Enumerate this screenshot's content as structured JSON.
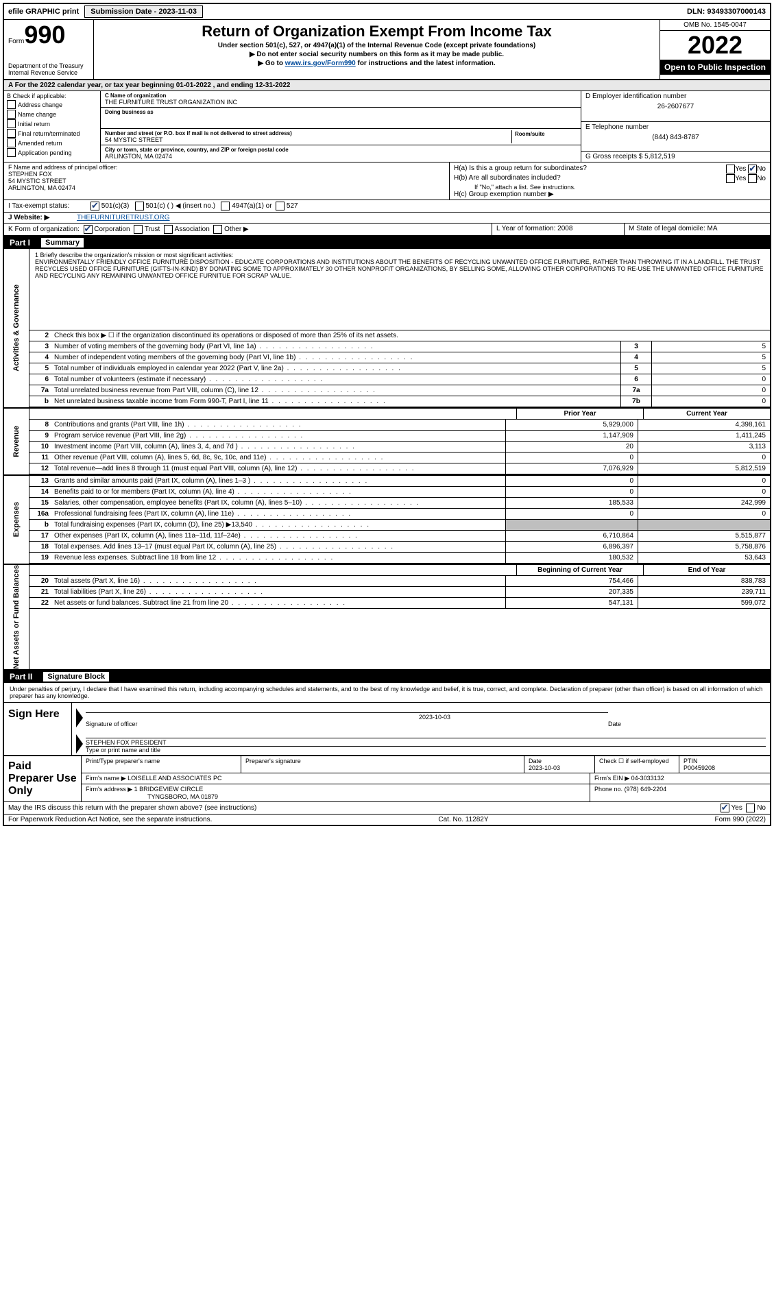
{
  "top": {
    "efile": "efile GRAPHIC print",
    "sub_label": "Submission Date - 2023-11-03",
    "dln": "DLN: 93493307000143"
  },
  "hdr": {
    "form_small": "Form",
    "form_num": "990",
    "dept": "Department of the Treasury",
    "irs": "Internal Revenue Service",
    "title": "Return of Organization Exempt From Income Tax",
    "sub1": "Under section 501(c), 527, or 4947(a)(1) of the Internal Revenue Code (except private foundations)",
    "sub2": "▶ Do not enter social security numbers on this form as it may be made public.",
    "sub3_pre": "▶ Go to ",
    "sub3_link": "www.irs.gov/Form990",
    "sub3_post": " for instructions and the latest information.",
    "omb": "OMB No. 1545-0047",
    "year": "2022",
    "open": "Open to Public Inspection"
  },
  "periodA": "A For the 2022 calendar year, or tax year beginning 01-01-2022    , and ending 12-31-2022",
  "B": {
    "title": "B Check if applicable:",
    "opts": [
      "Address change",
      "Name change",
      "Initial return",
      "Final return/terminated",
      "Amended return",
      "Application pending"
    ]
  },
  "C": {
    "name_lbl": "C Name of organization",
    "name": "THE FURNITURE TRUST ORGANIZATION INC",
    "dba_lbl": "Doing business as",
    "dba": "",
    "street_lbl": "Number and street (or P.O. box if mail is not delivered to street address)",
    "street": "54 MYSTIC STREET",
    "room_lbl": "Room/suite",
    "city_lbl": "City or town, state or province, country, and ZIP or foreign postal code",
    "city": "ARLINGTON, MA  02474"
  },
  "D": {
    "lbl": "D Employer identification number",
    "val": "26-2607677"
  },
  "E": {
    "lbl": "E Telephone number",
    "val": "(844) 843-8787"
  },
  "G": {
    "lbl": "G Gross receipts $",
    "val": "5,812,519"
  },
  "F": {
    "lbl": "F Name and address of principal officer:",
    "name": "STEPHEN FOX",
    "street": "54 MYSTIC STREET",
    "city": "ARLINGTON, MA  02474"
  },
  "H": {
    "a": "H(a)  Is this a group return for subordinates?",
    "b": "H(b)  Are all subordinates included?",
    "b_note": "If \"No,\" attach a list. See instructions.",
    "c": "H(c)  Group exemption number ▶",
    "yes": "Yes",
    "no": "No"
  },
  "I": {
    "lbl": "I   Tax-exempt status:",
    "s1": "501(c)(3)",
    "s2": "501(c) (  ) ◀ (insert no.)",
    "s3": "4947(a)(1) or",
    "s4": "527"
  },
  "J": {
    "lbl": "J   Website: ▶",
    "val": "THEFURNITURETRUST.ORG"
  },
  "K": {
    "lbl": "K Form of organization:",
    "o1": "Corporation",
    "o2": "Trust",
    "o3": "Association",
    "o4": "Other ▶"
  },
  "L": {
    "lbl": "L Year of formation:",
    "val": "2008"
  },
  "M": {
    "lbl": "M State of legal domicile:",
    "val": "MA"
  },
  "part1": {
    "no": "Part I",
    "title": "Summary"
  },
  "mission_lbl": "1   Briefly describe the organization's mission or most significant activities:",
  "mission": "ENVIRONMENTALLY FRIENDLY OFFICE FURNITURE DISPOSITION - EDUCATE CORPORATIONS AND INSTITUTIONS ABOUT THE BENEFITS OF RECYCLING UNWANTED OFFICE FURNITURE, RATHER THAN THROWING IT IN A LANDFILL. THE TRUST RECYCLES USED OFFICE FURNITURE (GIFTS-IN-KIND) BY DONATING SOME TO APPROXIMATELY 30 OTHER NONPROFIT ORGANIZATIONS, BY SELLING SOME, ALLOWING OTHER CORPORATIONS TO RE-USE THE UNWANTED OFFICE FURNITURE AND RECYCLING ANY REMAINING UNWANTED OFFICE FURNITUE FOR SCRAP VALUE.",
  "governance": {
    "header": "Activities & Governance",
    "l2": "Check this box ▶ ☐ if the organization discontinued its operations or disposed of more than 25% of its net assets.",
    "rows": [
      {
        "n": "3",
        "d": "Number of voting members of the governing body (Part VI, line 1a)",
        "ref": "3",
        "v": "5"
      },
      {
        "n": "4",
        "d": "Number of independent voting members of the governing body (Part VI, line 1b)",
        "ref": "4",
        "v": "5"
      },
      {
        "n": "5",
        "d": "Total number of individuals employed in calendar year 2022 (Part V, line 2a)",
        "ref": "5",
        "v": "5"
      },
      {
        "n": "6",
        "d": "Total number of volunteers (estimate if necessary)",
        "ref": "6",
        "v": "0"
      },
      {
        "n": "7a",
        "d": "Total unrelated business revenue from Part VIII, column (C), line 12",
        "ref": "7a",
        "v": "0"
      },
      {
        "n": "b",
        "d": "Net unrelated business taxable income from Form 990-T, Part I, line 11",
        "ref": "7b",
        "v": "0"
      }
    ]
  },
  "cols": {
    "prior": "Prior Year",
    "curr": "Current Year",
    "begin": "Beginning of Current Year",
    "end": "End of Year"
  },
  "revenue": {
    "header": "Revenue",
    "rows": [
      {
        "n": "8",
        "d": "Contributions and grants (Part VIII, line 1h)",
        "p": "5,929,000",
        "c": "4,398,161"
      },
      {
        "n": "9",
        "d": "Program service revenue (Part VIII, line 2g)",
        "p": "1,147,909",
        "c": "1,411,245"
      },
      {
        "n": "10",
        "d": "Investment income (Part VIII, column (A), lines 3, 4, and 7d )",
        "p": "20",
        "c": "3,113"
      },
      {
        "n": "11",
        "d": "Other revenue (Part VIII, column (A), lines 5, 6d, 8c, 9c, 10c, and 11e)",
        "p": "0",
        "c": "0"
      },
      {
        "n": "12",
        "d": "Total revenue—add lines 8 through 11 (must equal Part VIII, column (A), line 12)",
        "p": "7,076,929",
        "c": "5,812,519"
      }
    ]
  },
  "expenses": {
    "header": "Expenses",
    "rows": [
      {
        "n": "13",
        "d": "Grants and similar amounts paid (Part IX, column (A), lines 1–3 )",
        "p": "0",
        "c": "0"
      },
      {
        "n": "14",
        "d": "Benefits paid to or for members (Part IX, column (A), line 4)",
        "p": "0",
        "c": "0"
      },
      {
        "n": "15",
        "d": "Salaries, other compensation, employee benefits (Part IX, column (A), lines 5–10)",
        "p": "185,533",
        "c": "242,999"
      },
      {
        "n": "16a",
        "d": "Professional fundraising fees (Part IX, column (A), line 11e)",
        "p": "0",
        "c": "0"
      },
      {
        "n": "b",
        "d": "Total fundraising expenses (Part IX, column (D), line 25) ▶13,540",
        "p": "",
        "c": "",
        "gray": true
      },
      {
        "n": "17",
        "d": "Other expenses (Part IX, column (A), lines 11a–11d, 11f–24e)",
        "p": "6,710,864",
        "c": "5,515,877"
      },
      {
        "n": "18",
        "d": "Total expenses. Add lines 13–17 (must equal Part IX, column (A), line 25)",
        "p": "6,896,397",
        "c": "5,758,876"
      },
      {
        "n": "19",
        "d": "Revenue less expenses. Subtract line 18 from line 12",
        "p": "180,532",
        "c": "53,643"
      }
    ]
  },
  "netassets": {
    "header": "Net Assets or Fund Balances",
    "rows": [
      {
        "n": "20",
        "d": "Total assets (Part X, line 16)",
        "p": "754,466",
        "c": "838,783"
      },
      {
        "n": "21",
        "d": "Total liabilities (Part X, line 26)",
        "p": "207,335",
        "c": "239,711"
      },
      {
        "n": "22",
        "d": "Net assets or fund balances. Subtract line 21 from line 20",
        "p": "547,131",
        "c": "599,072"
      }
    ]
  },
  "part2": {
    "no": "Part II",
    "title": "Signature Block"
  },
  "sig_text": "Under penalties of perjury, I declare that I have examined this return, including accompanying schedules and statements, and to the best of my knowledge and belief, it is true, correct, and complete. Declaration of preparer (other than officer) is based on all information of which preparer has any knowledge.",
  "sign": {
    "here": "Sign Here",
    "sig_lbl": "Signature of officer",
    "date_lbl": "Date",
    "date": "2023-10-03",
    "name": "STEPHEN FOX  PRESIDENT",
    "name_lbl": "Type or print name and title"
  },
  "prep": {
    "here": "Paid Preparer Use Only",
    "p_name_lbl": "Print/Type preparer's name",
    "p_sig_lbl": "Preparer's signature",
    "p_date_lbl": "Date",
    "p_date": "2023-10-03",
    "self_lbl": "Check ☐ if self-employed",
    "ptin_lbl": "PTIN",
    "ptin": "P00459208",
    "firm_name_lbl": "Firm's name   ▶",
    "firm_name": "LOISELLE AND ASSOCIATES PC",
    "firm_ein_lbl": "Firm's EIN ▶",
    "firm_ein": "04-3033132",
    "firm_addr_lbl": "Firm's address ▶",
    "firm_addr": "1 BRIDGEVIEW CIRCLE",
    "firm_city": "TYNGSBORO, MA  01879",
    "phone_lbl": "Phone no.",
    "phone": "(978) 649-2204"
  },
  "discuss": "May the IRS discuss this return with the preparer shown above? (see instructions)",
  "foot": {
    "l": "For Paperwork Reduction Act Notice, see the separate instructions.",
    "m": "Cat. No. 11282Y",
    "r": "Form 990 (2022)"
  }
}
